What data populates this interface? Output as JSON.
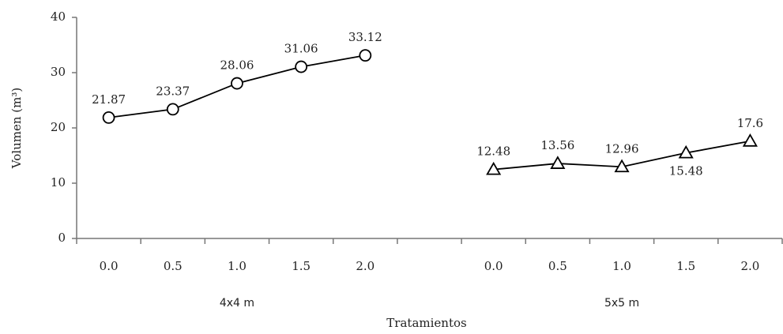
{
  "chart_data": {
    "type": "line",
    "ylabel": "Volumen (m³)",
    "xlabel": "Tratamientos",
    "categories": [
      "0.0",
      "0.5",
      "1.0",
      "1.5",
      "2.0",
      null,
      "0.0",
      "0.5",
      "1.0",
      "1.5",
      "2.0"
    ],
    "groups": [
      "4x4 m",
      "5x5 m"
    ],
    "series": [
      {
        "name": "4x4 m",
        "color": "#000000",
        "marker": "circle",
        "values": [
          21.87,
          23.37,
          28.06,
          31.06,
          33.12,
          null,
          null,
          null,
          null,
          null,
          null
        ]
      },
      {
        "name": "5x5 m",
        "color": "#000000",
        "marker": "triangle",
        "values": [
          null,
          null,
          null,
          null,
          null,
          null,
          12.48,
          13.56,
          12.96,
          15.48,
          17.6
        ]
      }
    ],
    "ylim": [
      0,
      40
    ],
    "yticks": [
      0,
      10,
      20,
      30,
      40
    ],
    "grid": false
  }
}
